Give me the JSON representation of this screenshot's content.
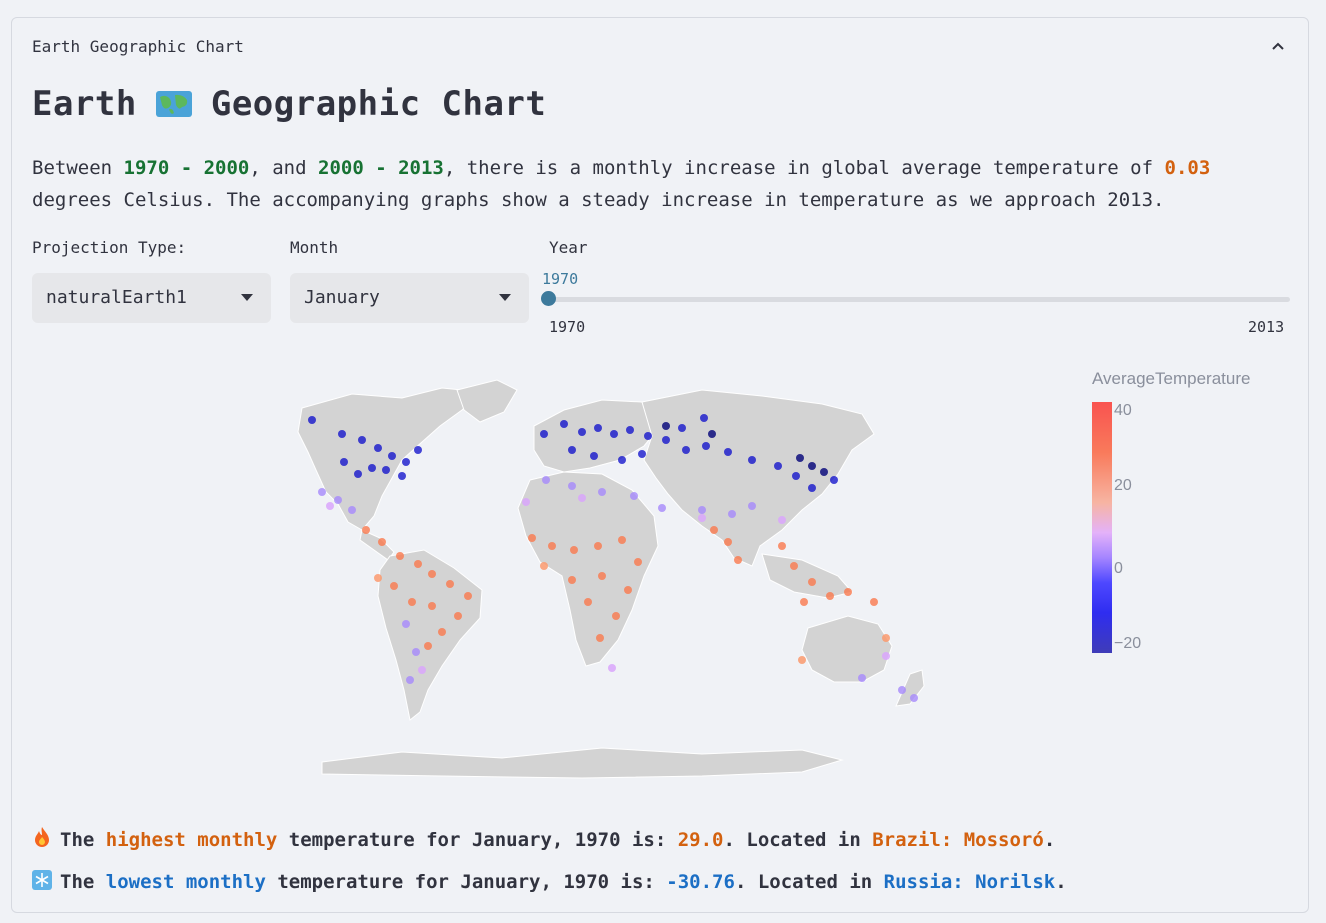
{
  "expander": {
    "label": "Earth Geographic Chart"
  },
  "title": {
    "left": "Earth",
    "right": "Geographic Chart"
  },
  "description": {
    "p1": "Between ",
    "range1": "1970 - 2000",
    "p2": ", and ",
    "range2": "2000 - 2013",
    "p3": ", there is a monthly increase in global average temperature of ",
    "increase": "0.03",
    "p4": " degrees Celsius. The accompanying graphs show a steady increase in temperature as we approach 2013."
  },
  "controls": {
    "projection_label": "Projection Type:",
    "projection_value": "naturalEarth1",
    "month_label": "Month",
    "month_value": "January",
    "year_label": "Year",
    "year_value": "1970",
    "year_min": "1970",
    "year_max": "2013",
    "year_fraction": 0.0
  },
  "colorbar": {
    "title": "AverageTemperature",
    "ticks": [
      "40",
      "20",
      "0",
      "−20"
    ]
  },
  "facts": {
    "high": {
      "t1": "The ",
      "k": "highest monthly",
      "t2": " temperature for January, 1970 is: ",
      "value": "29.0",
      "t3": ". Located in ",
      "loc": "Brazil: Mossoró",
      "t4": "."
    },
    "low": {
      "t1": "The ",
      "k": "lowest monthly",
      "t2": " temperature for January, 1970 is: ",
      "value": "-30.76",
      "t3": ". Located in ",
      "loc": "Russia: Norilsk",
      "t4": "."
    }
  },
  "icons": [
    "chevron-up-icon",
    "world-map-icon",
    "fire-icon",
    "snowflake-icon",
    "caret-down-icon"
  ],
  "colors": {
    "green": "#177233",
    "orange": "#d3610f",
    "blue": "#1c6fc5",
    "slider": "#3d7a9c"
  }
}
